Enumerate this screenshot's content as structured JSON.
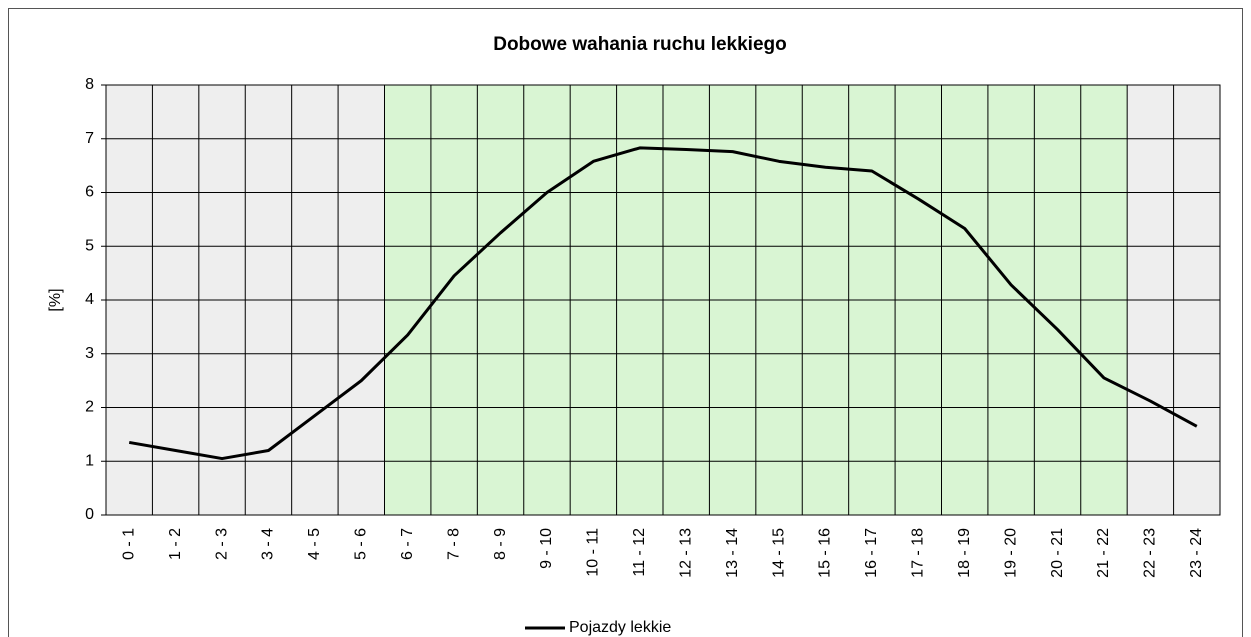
{
  "chart_data": {
    "type": "line",
    "title": "Dobowe wahania ruchu lekkiego",
    "y_label": "[%]",
    "categories": [
      "0 - 1",
      "1 - 2",
      "2 - 3",
      "3 - 4",
      "4 - 5",
      "5 - 6",
      "6 - 7",
      "7 - 8",
      "8 - 9",
      "9 - 10",
      "10 - 11",
      "11 - 12",
      "12 - 13",
      "13 - 14",
      "14 - 15",
      "15 - 16",
      "16 - 17",
      "17 - 18",
      "18 - 19",
      "19 - 20",
      "20 - 21",
      "21 - 22",
      "22 - 23",
      "23 - 24"
    ],
    "series": [
      {
        "name": "Pojazdy lekkie",
        "color": "#000000",
        "values": [
          1.35,
          1.2,
          1.05,
          1.2,
          1.85,
          2.5,
          3.35,
          4.45,
          5.25,
          6.0,
          6.58,
          6.83,
          6.8,
          6.76,
          6.58,
          6.47,
          6.4,
          5.88,
          5.33,
          4.28,
          3.45,
          2.55,
          2.12,
          1.65
        ]
      }
    ],
    "band_colors": [
      "#eeeeee",
      "#eeeeee",
      "#eeeeee",
      "#eeeeee",
      "#eeeeee",
      "#eeeeee",
      "#d9f5d3",
      "#d9f5d3",
      "#d9f5d3",
      "#d9f5d3",
      "#d9f5d3",
      "#d9f5d3",
      "#d9f5d3",
      "#d9f5d3",
      "#d9f5d3",
      "#d9f5d3",
      "#d9f5d3",
      "#d9f5d3",
      "#d9f5d3",
      "#d9f5d3",
      "#d9f5d3",
      "#d9f5d3",
      "#eeeeee",
      "#eeeeee"
    ],
    "ylim": [
      0,
      8
    ],
    "yticks": [
      0,
      1,
      2,
      3,
      4,
      5,
      6,
      7,
      8
    ],
    "grid": true,
    "legend": "bottom"
  }
}
